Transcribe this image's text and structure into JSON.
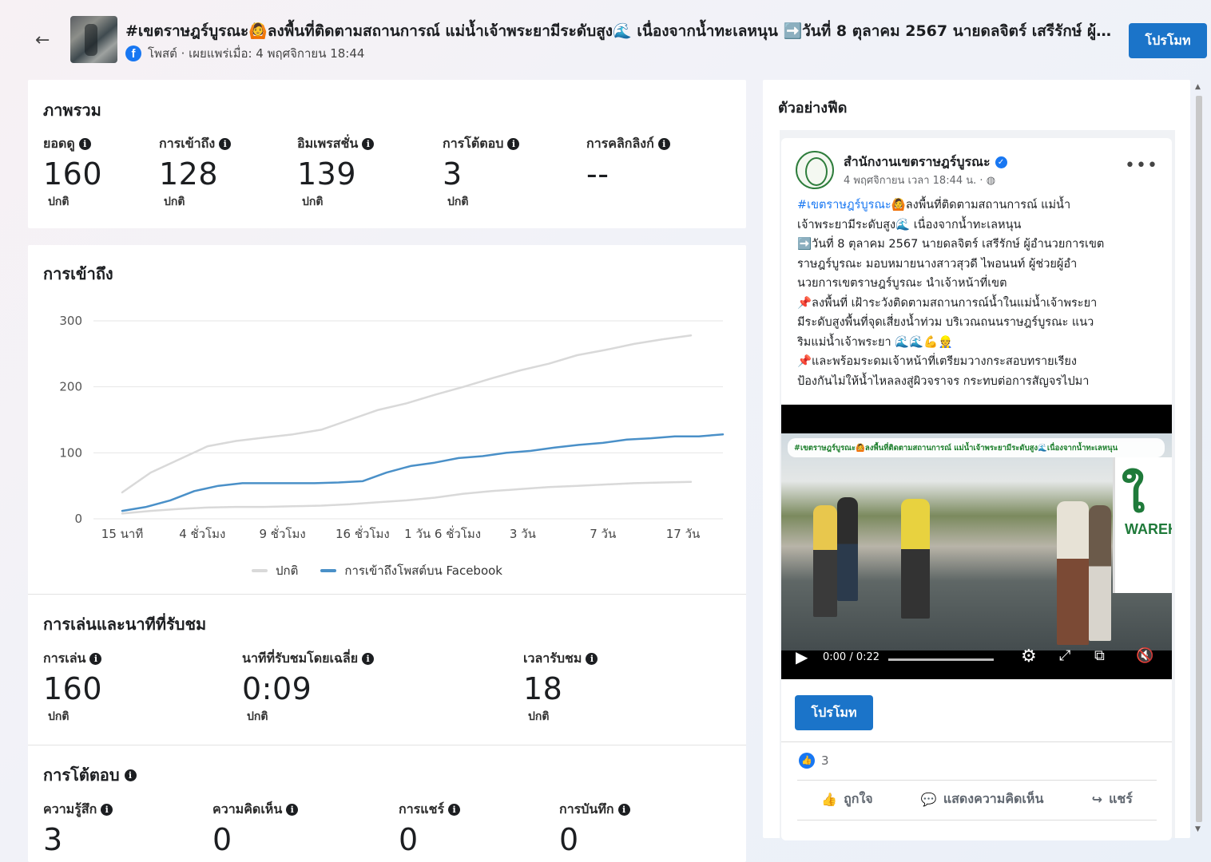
{
  "header": {
    "back_glyph": "←",
    "title": "#เขตราษฎร์บูรณะ🙆ลงพื้นที่ติดตามสถานการณ์ แม่น้ำเจ้าพระยามีระดับสูง🌊 เนื่องจากน้ำทะเลหนุน ➡️วันที่ 8 ตุลาคม 2567 นายดลจิตร์ เสรีรักษ์ ผู้อำนวยการเขต",
    "meta": "โพสต์ · เผยแพร่เมื่อ: 4 พฤศจิกายน 18:44",
    "promote_label": "โปรโมท"
  },
  "overview": {
    "title": "ภาพรวม",
    "metrics": [
      {
        "label": "ยอดดู",
        "value": "160",
        "sub": "ปกติ"
      },
      {
        "label": "การเข้าถึง",
        "value": "128",
        "sub": "ปกติ"
      },
      {
        "label": "อิมเพรสชั่น",
        "value": "139",
        "sub": "ปกติ"
      },
      {
        "label": "การโต้ตอบ",
        "value": "3",
        "sub": "ปกติ"
      },
      {
        "label": "การคลิกลิงก์",
        "value": "--",
        "sub": ""
      }
    ]
  },
  "reach": {
    "title": "การเข้าถึง",
    "legend_normal": "ปกติ",
    "legend_series": "การเข้าถึงโพสต์บน Facebook"
  },
  "chart_data": {
    "type": "line",
    "x_ticks": [
      "15 นาที",
      "4 ชั่วโมง",
      "9 ชั่วโมง",
      "16 ชั่วโมง",
      "1 วัน 6 ชั่วโมง",
      "3 วัน",
      "7 วัน",
      "17 วัน"
    ],
    "ylim": [
      0,
      300
    ],
    "y_ticks": [
      "0",
      "100",
      "200",
      "300"
    ],
    "grid": true,
    "legend_placement": "bottom",
    "series": [
      {
        "name": "การเข้าถึงโพสต์บน Facebook",
        "color": "#4a90c8",
        "values": [
          12,
          18,
          28,
          42,
          50,
          54,
          54,
          54,
          54,
          55,
          57,
          70,
          80,
          85,
          92,
          95,
          100,
          103,
          108,
          112,
          115,
          120,
          122,
          125,
          125,
          128
        ]
      },
      {
        "name": "ปกติ (upper)",
        "color": "#d9d9d9",
        "values": [
          40,
          70,
          90,
          110,
          118,
          123,
          128,
          135,
          150,
          165,
          175,
          188,
          200,
          213,
          225,
          235,
          248,
          256,
          265,
          272,
          278
        ]
      },
      {
        "name": "ปกติ (lower)",
        "color": "#d9d9d9",
        "values": [
          8,
          12,
          15,
          17,
          18,
          18,
          19,
          20,
          22,
          25,
          28,
          32,
          38,
          42,
          45,
          48,
          50,
          52,
          54,
          55,
          56
        ]
      }
    ]
  },
  "playback": {
    "title": "การเล่นและนาทีที่รับชม",
    "metrics": [
      {
        "label": "การเล่น",
        "value": "160",
        "sub": "ปกติ"
      },
      {
        "label": "นาทีที่รับชมโดยเฉลี่ย",
        "value": "0:09",
        "sub": "ปกติ"
      },
      {
        "label": "เวลารับชม",
        "value": "18",
        "sub": "ปกติ"
      }
    ]
  },
  "engagement": {
    "title": "การโต้ตอบ",
    "metrics": [
      {
        "label": "ความรู้สึก",
        "value": "3"
      },
      {
        "label": "ความคิดเห็น",
        "value": "0"
      },
      {
        "label": "การแชร์",
        "value": "0"
      },
      {
        "label": "การบันทึก",
        "value": "0"
      }
    ]
  },
  "feed_preview": {
    "title": "ตัวอย่างฟีด",
    "page_name": "สำนักงานเขตราษฎร์บูรณะ",
    "time": "4 พฤศจิกายน เวลา 18:44 น. ·",
    "hashtag": "#เขตราษฎร์บูรณะ",
    "body_lines": [
      "🙆ลงพื้นที่ติดตามสถานการณ์ แม่น้ำ",
      "เจ้าพระยามีระดับสูง🌊 เนื่องจากน้ำทะเลหนุน",
      "➡️วันที่ 8 ตุลาคม 2567 นายดลจิตร์ เสรีรักษ์ ผู้อำนวยการเขต",
      "ราษฎร์บูรณะ มอบหมายนางสาวสุวดี ไพอนนท์ ผู้ช่วยผู้อำ",
      "นวยการเขตราษฎร์บูรณะ นำเจ้าหน้าที่เขต",
      "📌ลงพื้นที่ เฝ้าระวังติดตามสถานการณ์น้ำในแม่น้ำเจ้าพระยา",
      "มีระดับสูงพื้นที่จุดเสี่ยงน้ำท่วม บริเวณถนนราษฎร์บูรณะ แนว",
      "ริมแม่น้ำเจ้าพระยา 🌊🌊💪👷",
      "📌และพร้อมระดมเจ้าหน้าที่เตรียมวางกระสอบทรายเรียง",
      "ป้องกันไม่ให้น้ำไหลลงสู่ผิวจราจร กระทบต่อการสัญจรไปมา"
    ],
    "video_caption": "#เขตราษฎร์บูรณะ🙆ลงพื้นที่ติดตามสถานการณ์ แม่น้ำเจ้าพระยามีระดับสูง🌊เนื่องจากน้ำทะเลหนุน",
    "video_time": "0:00 / 0:22",
    "promote_label": "โปรโมท",
    "reaction_count": "3",
    "like_label": "ถูกใจ",
    "comment_label": "แสดงความคิดเห็น",
    "share_label": "แชร์"
  }
}
